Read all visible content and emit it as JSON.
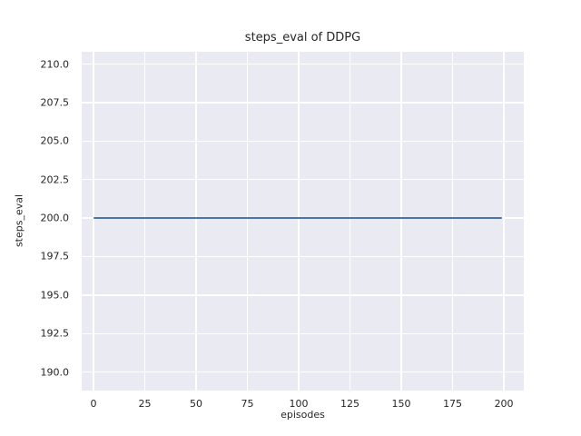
{
  "chart_data": {
    "type": "line",
    "title": "steps_eval of DDPG",
    "xlabel": "episodes",
    "ylabel": "steps_eval",
    "xlim": [
      -5.75,
      209.7
    ],
    "ylim": [
      188.8,
      210.8
    ],
    "xticks": [
      0,
      25,
      50,
      75,
      100,
      125,
      150,
      175,
      200
    ],
    "xtick_labels": [
      "0",
      "25",
      "50",
      "75",
      "100",
      "125",
      "150",
      "175",
      "200"
    ],
    "yticks": [
      190.0,
      192.5,
      195.0,
      197.5,
      200.0,
      202.5,
      205.0,
      207.5,
      210.0
    ],
    "ytick_labels": [
      "190.0",
      "192.5",
      "195.0",
      "197.5",
      "200.0",
      "202.5",
      "205.0",
      "207.5",
      "210.0"
    ],
    "grid": true,
    "legend": false,
    "series": [
      {
        "name": "DDPG",
        "color": "#4C72B0",
        "x": [
          0,
          199
        ],
        "y": [
          200,
          200
        ]
      }
    ],
    "style": {
      "figure_bg": "#ffffff",
      "axes_bg": "#EAEAF2",
      "grid_color": "#ffffff",
      "text_color": "#262626"
    }
  }
}
